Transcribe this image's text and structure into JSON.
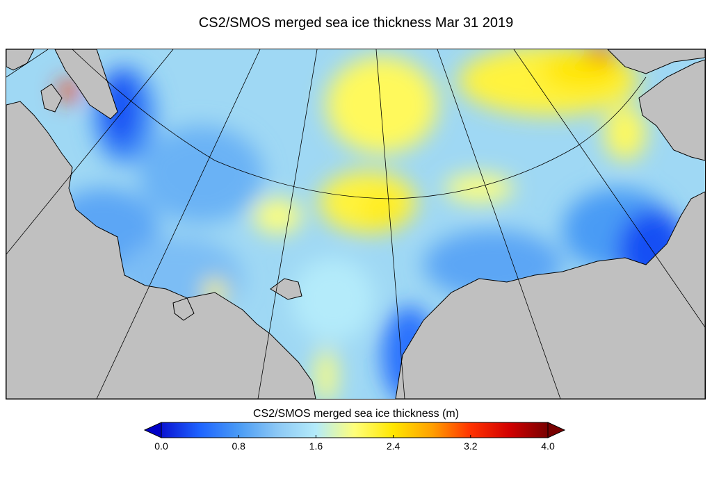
{
  "title": "CS2/SMOS merged sea ice thickness Mar 31 2019",
  "colorbar": {
    "label": "CS2/SMOS merged sea ice thickness (m)",
    "min": 0.0,
    "max": 4.0,
    "ticks": [
      "0.0",
      "0.8",
      "1.6",
      "2.4",
      "3.2",
      "4.0"
    ],
    "stops": [
      {
        "value": 0.0,
        "color": "#0a14d2"
      },
      {
        "value": 0.4,
        "color": "#1e64ff"
      },
      {
        "value": 0.8,
        "color": "#4a9bf5"
      },
      {
        "value": 1.2,
        "color": "#8cc8f5"
      },
      {
        "value": 1.6,
        "color": "#b4ebfa"
      },
      {
        "value": 2.0,
        "color": "#ffff7a"
      },
      {
        "value": 2.4,
        "color": "#ffe600"
      },
      {
        "value": 2.8,
        "color": "#ffa000"
      },
      {
        "value": 3.2,
        "color": "#ff3200"
      },
      {
        "value": 3.6,
        "color": "#d20000"
      },
      {
        "value": 4.0,
        "color": "#780000"
      }
    ],
    "under_color": "#0000c8",
    "over_color": "#780000"
  },
  "colors": {
    "land": "#c0c0c0",
    "background_ice": "#9fd8f4",
    "grid": "#000000"
  }
}
